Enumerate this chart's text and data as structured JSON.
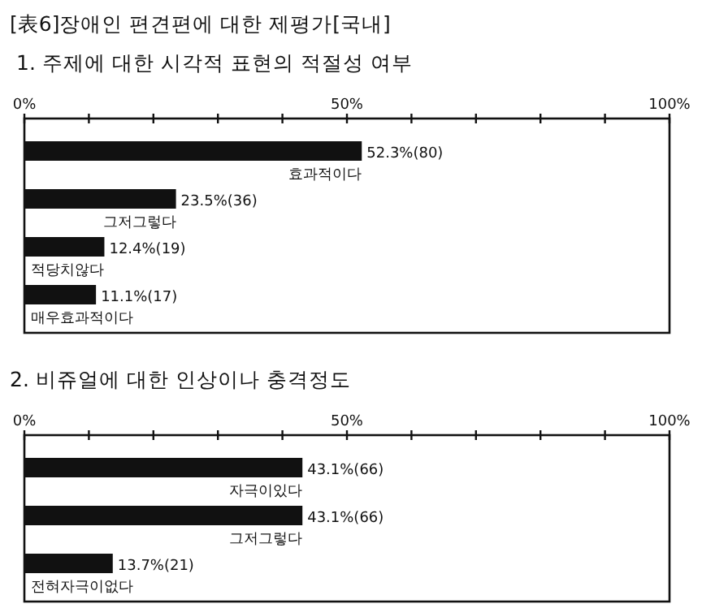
{
  "chart_data": [
    {
      "type": "bar",
      "orientation": "horizontal",
      "title": "[表6]장애인 편견편에 대한 제평가[국내]",
      "subtitle": "1. 주제에 대한 시각적 표현의 적절성 여부",
      "categories": [
        "효과적이다",
        "그저그렇다",
        "적당치않다",
        "매우효과적이다"
      ],
      "values": [
        52.3,
        23.5,
        12.4,
        11.1
      ],
      "value_labels": [
        "52.3%(80)",
        "23.5%(36)",
        "12.4%(19)",
        "11.1%(17)"
      ],
      "colors": [
        "#111111",
        "#111111",
        "#111111",
        "#111111"
      ],
      "xlim": [
        0,
        100
      ],
      "xticks": [
        {
          "value": 0,
          "label": "0%"
        },
        {
          "value": 10,
          "label": null
        },
        {
          "value": 20,
          "label": null
        },
        {
          "value": 30,
          "label": null
        },
        {
          "value": 40,
          "label": null
        },
        {
          "value": 50,
          "label": "50%"
        },
        {
          "value": 60,
          "label": null
        },
        {
          "value": 70,
          "label": null
        },
        {
          "value": 80,
          "label": null
        },
        {
          "value": 90,
          "label": null
        },
        {
          "value": 100,
          "label": "100%"
        }
      ]
    },
    {
      "type": "bar",
      "orientation": "horizontal",
      "title": "2. 비쥬얼에 대한 인상이나 충격정도",
      "categories": [
        "자극이있다",
        "그저그렇다",
        "전혀자극이없다"
      ],
      "values": [
        43.1,
        43.1,
        13.7
      ],
      "value_labels": [
        "43.1%(66)",
        "43.1%(66)",
        "13.7%(21)"
      ],
      "colors": [
        "#111111",
        "#111111",
        "#111111"
      ],
      "xlim": [
        0,
        100
      ],
      "xticks": [
        {
          "value": 0,
          "label": "0%"
        },
        {
          "value": 10,
          "label": null
        },
        {
          "value": 20,
          "label": null
        },
        {
          "value": 30,
          "label": null
        },
        {
          "value": 40,
          "label": null
        },
        {
          "value": 50,
          "label": "50%"
        },
        {
          "value": 60,
          "label": null
        },
        {
          "value": 70,
          "label": null
        },
        {
          "value": 80,
          "label": null
        },
        {
          "value": 90,
          "label": null
        },
        {
          "value": 100,
          "label": "100%"
        }
      ]
    }
  ]
}
